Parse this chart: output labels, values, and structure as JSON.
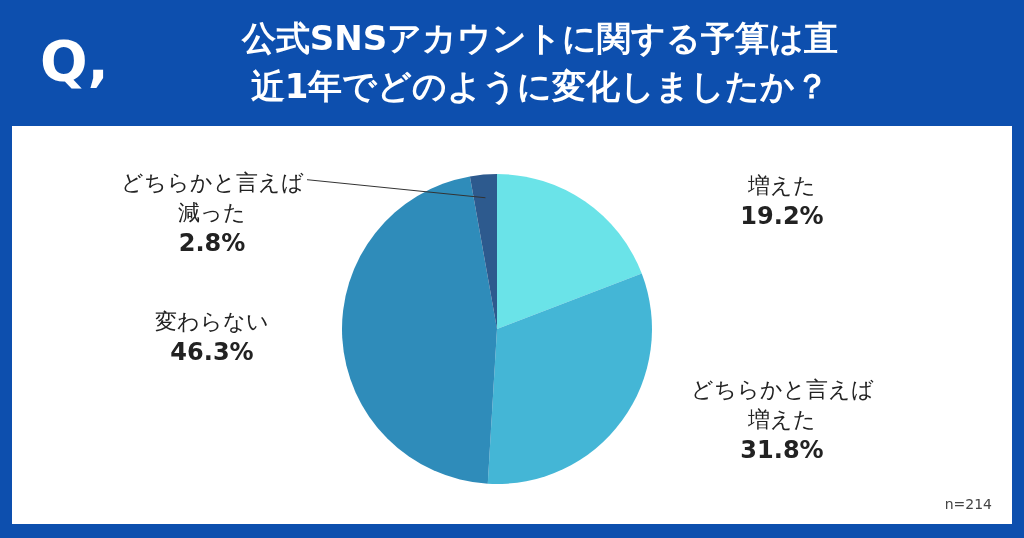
{
  "chart_data": {
    "type": "pie",
    "title": "公式SNSアカウントに関する予算は直近1年でどのように変化しましたか？",
    "categories": [
      "増えた",
      "どちらかと言えば増えた",
      "変わらない",
      "どちらかと言えば減った"
    ],
    "values": [
      19.2,
      31.8,
      46.3,
      2.8
    ],
    "colors": [
      "#6ae3e8",
      "#44b6d6",
      "#2f8cba",
      "#2d5a8e"
    ],
    "value_labels": [
      "19.2%",
      "31.8%",
      "46.3%",
      "2.8%"
    ],
    "annotations": [
      "Q,",
      "n=214"
    ]
  }
}
